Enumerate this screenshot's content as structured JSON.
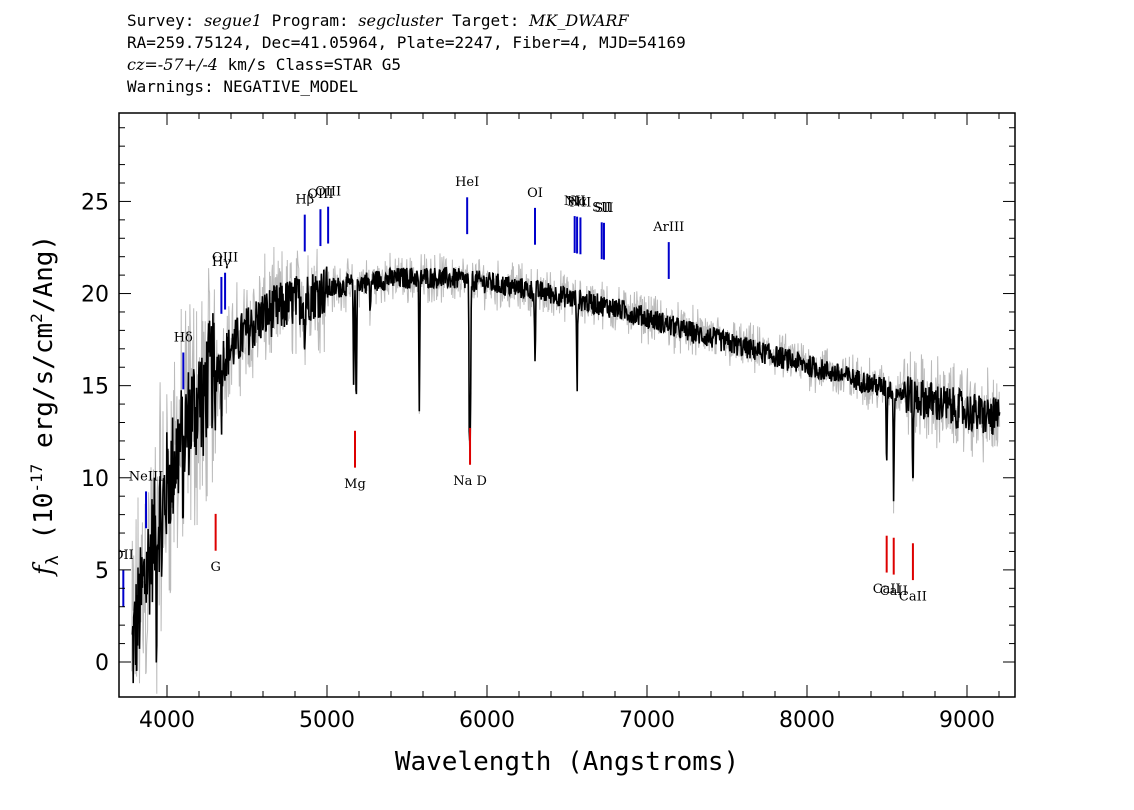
{
  "header": {
    "line1": {
      "survey_label": "Survey: ",
      "survey": "segue1",
      "program_label": " Program: ",
      "program": "segcluster",
      "target_label": " Target: ",
      "target": "MK_DWARF"
    },
    "line2": "RA=259.75124, Dec=41.05964, Plate=2247, Fiber=4, MJD=54169",
    "line3": {
      "cz_label": "cz=",
      "cz_value": "-57+/-4",
      "cz_unit": " km/s Class=STAR G5"
    },
    "line4": "Warnings: NEGATIVE_MODEL"
  },
  "chart_data": {
    "type": "line",
    "xlabel": "Wavelength (Angstroms)",
    "ylabel_pre": "f",
    "ylabel_sub": "λ",
    "ylabel_unit": " (10",
    "ylabel_exp": "-17",
    "ylabel_post": " erg/s/cm",
    "ylabel_sq": "2",
    "ylabel_end": "/Ang)",
    "xlim": [
      3700,
      9300
    ],
    "ylim": [
      -1.9,
      29.8
    ],
    "xticks": [
      4000,
      5000,
      6000,
      7000,
      8000,
      9000
    ],
    "yticks": [
      0,
      5,
      10,
      15,
      20,
      25
    ],
    "colors": {
      "flux": "#000000",
      "error_band": "#bbbbbb",
      "emission": "#0000cc",
      "absorption": "#dd0000"
    },
    "continuum": [
      [
        3780,
        0.5
      ],
      [
        3850,
        4
      ],
      [
        3950,
        8
      ],
      [
        4050,
        11
      ],
      [
        4150,
        13.5
      ],
      [
        4300,
        16
      ],
      [
        4450,
        17.5
      ],
      [
        4600,
        18.8
      ],
      [
        4800,
        19.6
      ],
      [
        5000,
        20.2
      ],
      [
        5200,
        20.6
      ],
      [
        5400,
        20.8
      ],
      [
        5600,
        20.9
      ],
      [
        5800,
        20.8
      ],
      [
        6000,
        20.6
      ],
      [
        6200,
        20.3
      ],
      [
        6400,
        20.0
      ],
      [
        6600,
        19.6
      ],
      [
        6800,
        19.2
      ],
      [
        7000,
        18.7
      ],
      [
        7200,
        18.1
      ],
      [
        7400,
        17.6
      ],
      [
        7600,
        17.1
      ],
      [
        7800,
        16.6
      ],
      [
        8000,
        16.1
      ],
      [
        8200,
        15.6
      ],
      [
        8400,
        15.1
      ],
      [
        8600,
        14.6
      ],
      [
        8800,
        14.1
      ],
      [
        9000,
        13.6
      ],
      [
        9200,
        13.2
      ]
    ],
    "absorption_dips": [
      [
        3934,
        5
      ],
      [
        3969,
        4
      ],
      [
        4102,
        4
      ],
      [
        4227,
        3
      ],
      [
        4300,
        4
      ],
      [
        4340,
        3
      ],
      [
        4861,
        3
      ],
      [
        5167,
        6
      ],
      [
        5183,
        7
      ],
      [
        5270,
        2
      ],
      [
        5577,
        7
      ],
      [
        5890,
        8
      ],
      [
        5896,
        8
      ],
      [
        6300,
        4
      ],
      [
        6563,
        5
      ],
      [
        8498,
        4
      ],
      [
        8542,
        6
      ],
      [
        8662,
        5
      ]
    ],
    "emission_lines": [
      {
        "label": "OII",
        "wavelength": 3727
      },
      {
        "label": "NeIII",
        "wavelength": 3869
      },
      {
        "label": "Hδ",
        "wavelength": 4102
      },
      {
        "label": "Hγ",
        "wavelength": 4340
      },
      {
        "label": "OIII",
        "wavelength": 4363
      },
      {
        "label": "Hβ",
        "wavelength": 4861
      },
      {
        "label": "OIII",
        "wavelength": 4959
      },
      {
        "label": "OIII",
        "wavelength": 5007
      },
      {
        "label": "HeI",
        "wavelength": 5876
      },
      {
        "label": "OI",
        "wavelength": 6300
      },
      {
        "label": "NII",
        "wavelength": 6548
      },
      {
        "label": "Hα",
        "wavelength": 6563
      },
      {
        "label": "NII",
        "wavelength": 6584
      },
      {
        "label": "SII",
        "wavelength": 6717
      },
      {
        "label": "SII",
        "wavelength": 6731
      },
      {
        "label": "ArIII",
        "wavelength": 7136
      }
    ],
    "absorption_lines": [
      {
        "label": "G",
        "wavelength": 4304
      },
      {
        "label": "Mg",
        "wavelength": 5175
      },
      {
        "label": "Na D",
        "wavelength": 5894
      },
      {
        "label": "CaII",
        "wavelength": 8498
      },
      {
        "label": "CaII",
        "wavelength": 8542
      },
      {
        "label": "CaII",
        "wavelength": 8662
      }
    ]
  }
}
